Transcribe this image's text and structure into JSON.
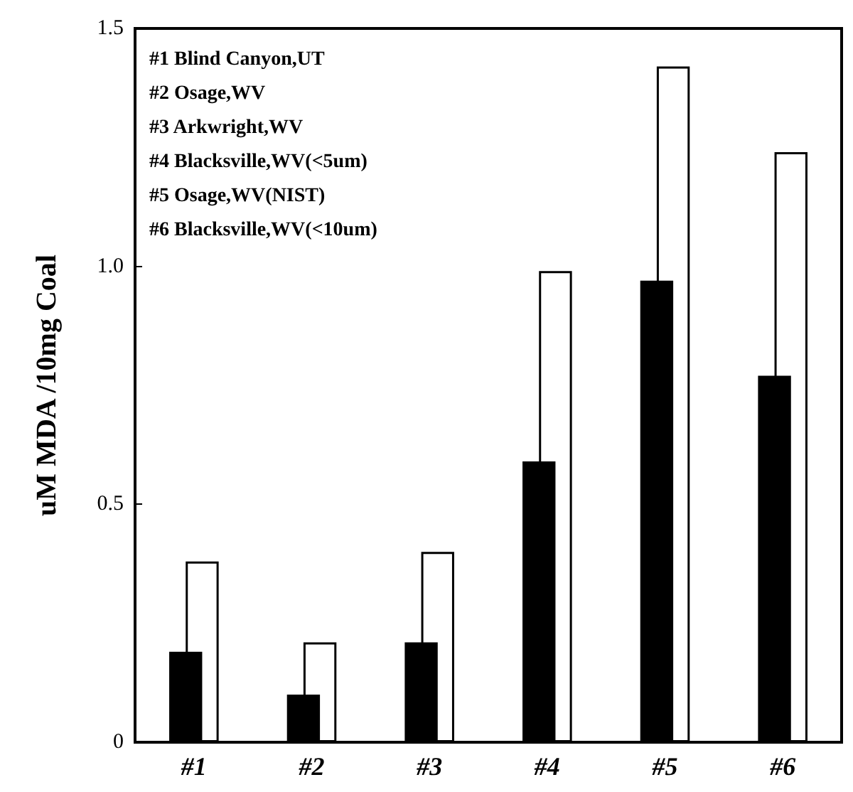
{
  "chart_data": {
    "type": "bar",
    "ylabel": "uM MDA /10mg Coal",
    "categories": [
      "#1",
      "#2",
      "#3",
      "#4",
      "#5",
      "#6"
    ],
    "series": [
      {
        "color": "#000000",
        "values": [
          0.19,
          0.1,
          0.21,
          0.59,
          0.97,
          0.77
        ]
      },
      {
        "color": "#ffffff",
        "values": [
          0.38,
          0.21,
          0.4,
          0.99,
          1.42,
          1.24
        ]
      }
    ],
    "ylim": [
      0,
      1.5
    ],
    "yticks": [
      0,
      0.5,
      {
        "value": 1,
        "label": "1.0"
      },
      1.5
    ],
    "grid": false,
    "annotations": [
      "#1 Blind Canyon,UT",
      "#2 Osage,WV",
      "#3 Arkwright,WV",
      "#4 Blacksville,WV(<5um)",
      "#5 Osage,WV(NIST)",
      "#6 Blacksville,WV(<10um)"
    ]
  }
}
